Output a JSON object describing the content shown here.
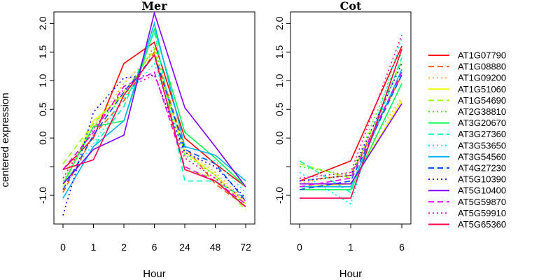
{
  "chart_data": {
    "type": "line",
    "ylabel": "centered expression",
    "legend_position": "right",
    "grid": false,
    "ytick_labels": [
      "-1.0",
      "",
      "0.0",
      "0.5",
      "1.0",
      "1.5",
      "2.0"
    ],
    "yticks": [
      -1.0,
      -0.5,
      0.0,
      0.5,
      1.0,
      1.5,
      2.0
    ],
    "series_meta": [
      {
        "name": "AT1G07790",
        "color": "#ff0000",
        "dash": "solid"
      },
      {
        "name": "AT1G08880",
        "color": "#ff5a00",
        "dash": "dashed"
      },
      {
        "name": "AT1G09200",
        "color": "#ffb300",
        "dash": "dotted"
      },
      {
        "name": "AT1G51060",
        "color": "#f0ff00",
        "dash": "solid"
      },
      {
        "name": "AT1G54690",
        "color": "#99ff00",
        "dash": "dashed"
      },
      {
        "name": "AT2G38810",
        "color": "#33ff00",
        "dash": "dotted"
      },
      {
        "name": "AT3G20670",
        "color": "#00ff4d",
        "dash": "solid"
      },
      {
        "name": "AT3G27360",
        "color": "#00ffb3",
        "dash": "dashed"
      },
      {
        "name": "AT3G53650",
        "color": "#00ffff",
        "dash": "dotted"
      },
      {
        "name": "AT3G54560",
        "color": "#00b3ff",
        "dash": "solid"
      },
      {
        "name": "AT4G27230",
        "color": "#004dff",
        "dash": "dashed"
      },
      {
        "name": "AT5G10390",
        "color": "#1a00ff",
        "dash": "dotted"
      },
      {
        "name": "AT5G10400",
        "color": "#8000ff",
        "dash": "solid"
      },
      {
        "name": "AT5G59870",
        "color": "#e600ff",
        "dash": "dashed"
      },
      {
        "name": "AT5G59910",
        "color": "#ff00b3",
        "dash": "dotted"
      },
      {
        "name": "AT5G65360",
        "color": "#ff004d",
        "dash": "solid"
      }
    ],
    "panels": [
      {
        "title": "Mer",
        "xlabel": "Hour",
        "categories": [
          "0",
          "1",
          "2",
          "6",
          "24",
          "48",
          "72"
        ],
        "ylim": [
          -1.5,
          2.2
        ],
        "values": [
          [
            -0.55,
            0.0,
            1.3,
            1.67,
            0.0,
            -0.45,
            -0.85
          ],
          [
            -0.95,
            0.05,
            0.65,
            1.5,
            -0.15,
            -0.8,
            -1.2
          ],
          [
            -0.75,
            0.2,
            0.95,
            1.5,
            -0.2,
            -0.6,
            -1.1
          ],
          [
            -0.85,
            0.3,
            0.75,
            1.45,
            -0.25,
            -0.65,
            -1.15
          ],
          [
            -0.45,
            0.25,
            0.8,
            1.55,
            -0.55,
            -0.7,
            -1.25
          ],
          [
            -0.7,
            0.2,
            0.7,
            1.6,
            -0.3,
            -0.65,
            -1.2
          ],
          [
            -0.8,
            0.2,
            0.3,
            1.9,
            0.1,
            -0.35,
            -0.85
          ],
          [
            -1.05,
            -0.15,
            0.55,
            1.85,
            -0.75,
            -0.75,
            -1.05
          ],
          [
            -0.8,
            -0.1,
            0.7,
            1.3,
            -0.3,
            -0.4,
            -0.95
          ],
          [
            -1.05,
            -0.15,
            0.3,
            2.0,
            -0.15,
            -0.3,
            -0.75
          ],
          [
            -0.9,
            0.05,
            0.8,
            1.45,
            -0.2,
            -0.45,
            -1.1
          ],
          [
            -1.35,
            0.45,
            1.05,
            1.1,
            -0.25,
            -0.5,
            -1.05
          ],
          [
            -0.8,
            -0.2,
            0.05,
            2.18,
            0.53,
            -0.15,
            -0.85
          ],
          [
            -0.55,
            0.1,
            0.9,
            1.15,
            -0.5,
            -0.75,
            -1.15
          ],
          [
            -0.7,
            0.15,
            0.85,
            1.1,
            -0.35,
            -0.7,
            -1.1
          ],
          [
            -0.55,
            -0.38,
            0.75,
            1.45,
            -0.55,
            -0.75,
            -1.2
          ]
        ]
      },
      {
        "title": "Cot",
        "xlabel": "Hour",
        "categories": [
          "0",
          "1",
          "6"
        ],
        "ylim": [
          -1.5,
          2.2
        ],
        "values": [
          [
            -0.75,
            -0.4,
            1.6
          ],
          [
            -0.75,
            -0.65,
            1.1
          ],
          [
            -0.8,
            -0.6,
            0.7
          ],
          [
            -0.85,
            -0.8,
            0.65
          ],
          [
            -0.45,
            -0.7,
            1.35
          ],
          [
            -0.5,
            -0.65,
            1.5
          ],
          [
            -0.9,
            -0.9,
            0.95
          ],
          [
            -0.4,
            -0.95,
            1.4
          ],
          [
            -0.6,
            -1.15,
            1.75
          ],
          [
            -0.85,
            -0.85,
            1.2
          ],
          [
            -0.9,
            -0.75,
            1.1
          ],
          [
            -0.75,
            -0.65,
            1.3
          ],
          [
            -0.8,
            -0.8,
            0.6
          ],
          [
            -0.85,
            -0.7,
            1.15
          ],
          [
            -0.7,
            -0.6,
            1.8
          ],
          [
            -1.05,
            -1.05,
            1.55
          ]
        ]
      }
    ]
  }
}
